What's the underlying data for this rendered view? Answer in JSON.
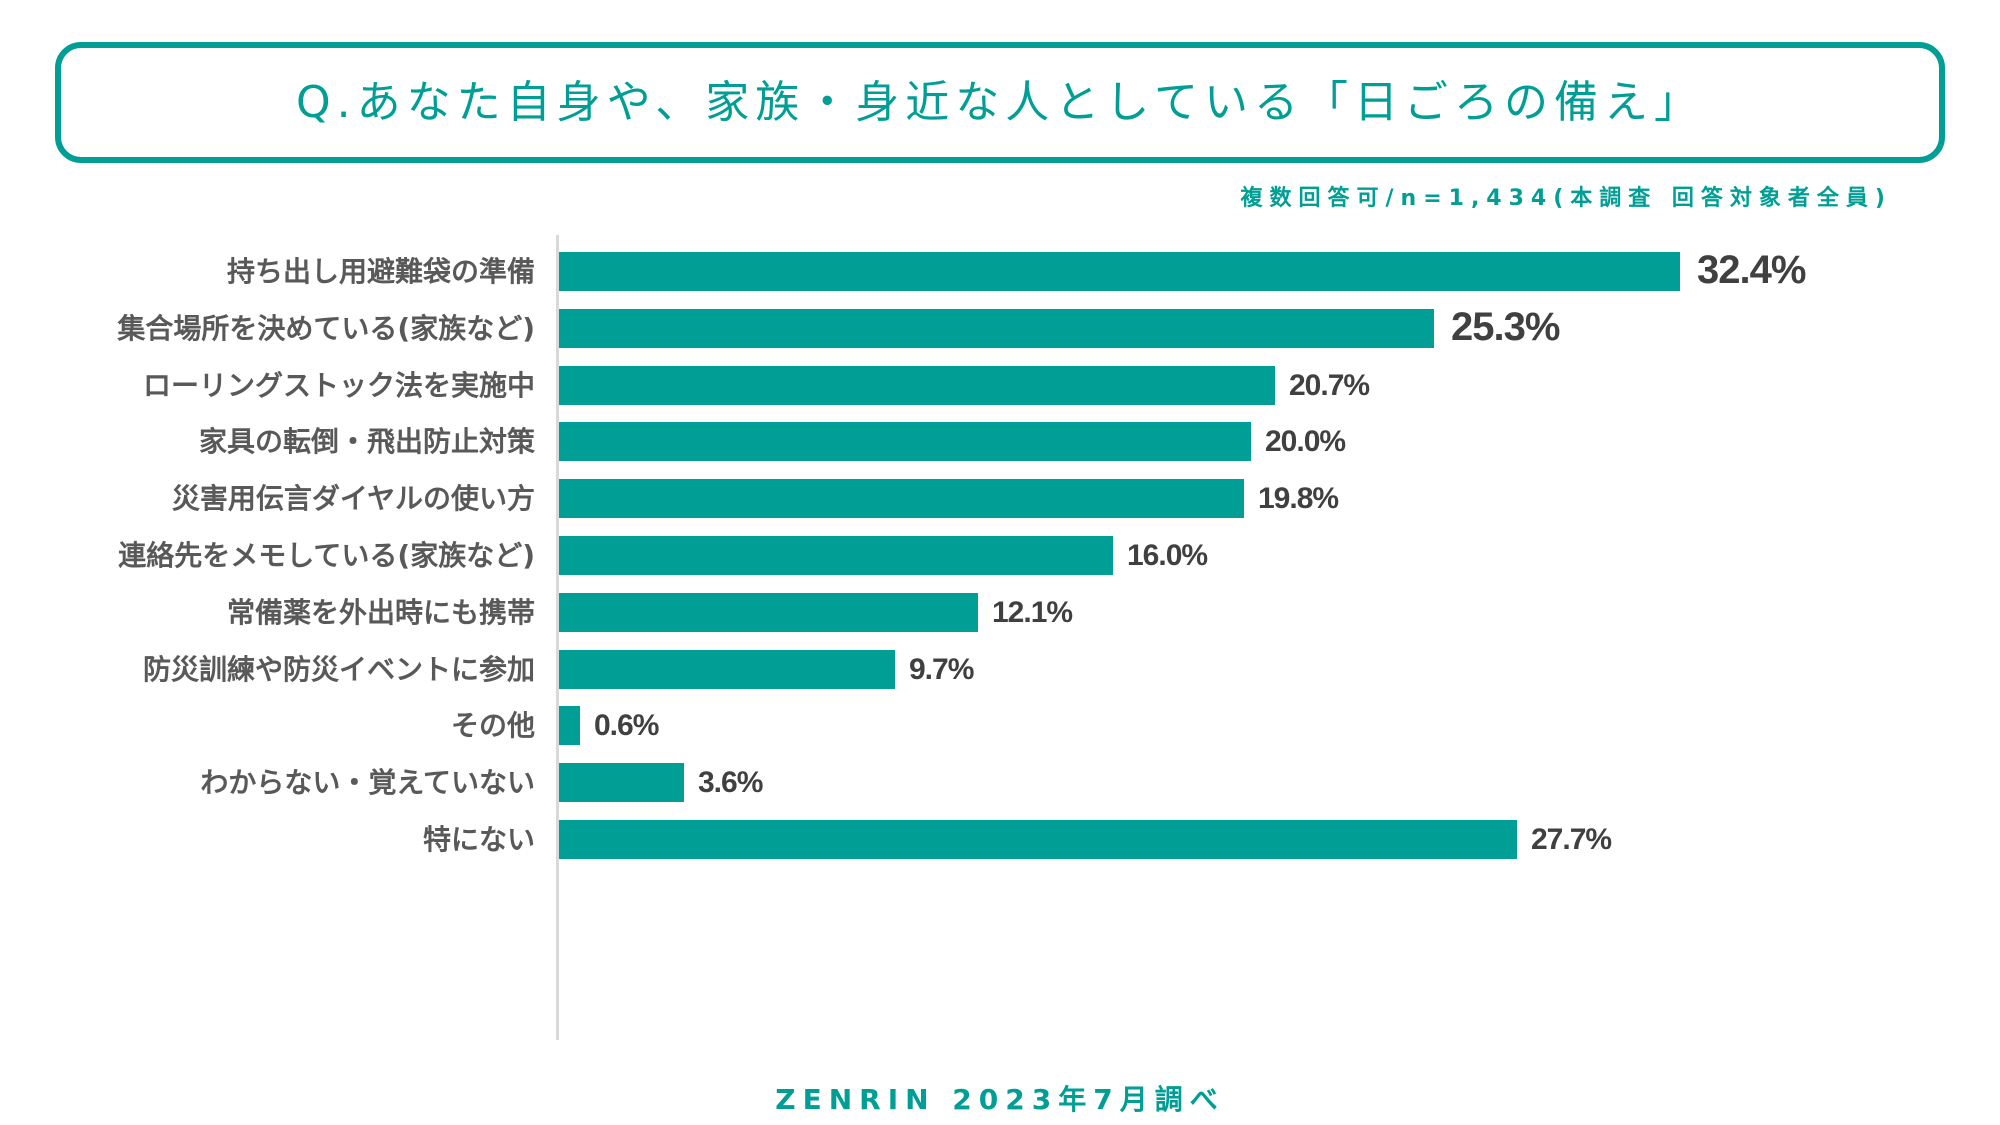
{
  "colors": {
    "accent": "#009e94",
    "label_text": "#595959",
    "value_text": "#404040",
    "axis": "#d9d9d9"
  },
  "header": {
    "title": "Q.あなた自身や、家族・身近な人としている「日ごろの備え」",
    "subtitle": "複数回答可/n=1,434(本調査 回答対象者全員)"
  },
  "footer": {
    "source": "ZENRIN 2023年7月調べ"
  },
  "chart_data": {
    "type": "bar",
    "orientation": "horizontal",
    "title": "Q.あなた自身や、家族・身近な人としている「日ごろの備え」",
    "subtitle": "複数回答可/n=1,434(本調査 回答対象者全員)",
    "xlabel": "",
    "ylabel": "",
    "unit": "%",
    "xlim": [
      0,
      32.4
    ],
    "grid": false,
    "legend": "none",
    "categories": [
      "持ち出し用避難袋の準備",
      "集合場所を決めている(家族など)",
      "ローリングストック法を実施中",
      "家具の転倒・飛出防止対策",
      "災害用伝言ダイヤルの使い方",
      "連絡先をメモしている(家族など)",
      "常備薬を外出時にも携帯",
      "防災訓練や防災イベントに参加",
      "その他",
      "わからない・覚えていない",
      "特にない"
    ],
    "values": [
      32.4,
      25.3,
      20.7,
      20.0,
      19.8,
      16.0,
      12.1,
      9.7,
      0.6,
      3.6,
      27.7
    ],
    "value_labels": [
      "32.4%",
      "25.3%",
      "20.7%",
      "20.0%",
      "19.8%",
      "16.0%",
      "12.1%",
      "9.7%",
      "0.6%",
      "3.6%",
      "27.7%"
    ],
    "emphasized": [
      true,
      true,
      false,
      false,
      false,
      false,
      false,
      false,
      false,
      false,
      false
    ]
  }
}
